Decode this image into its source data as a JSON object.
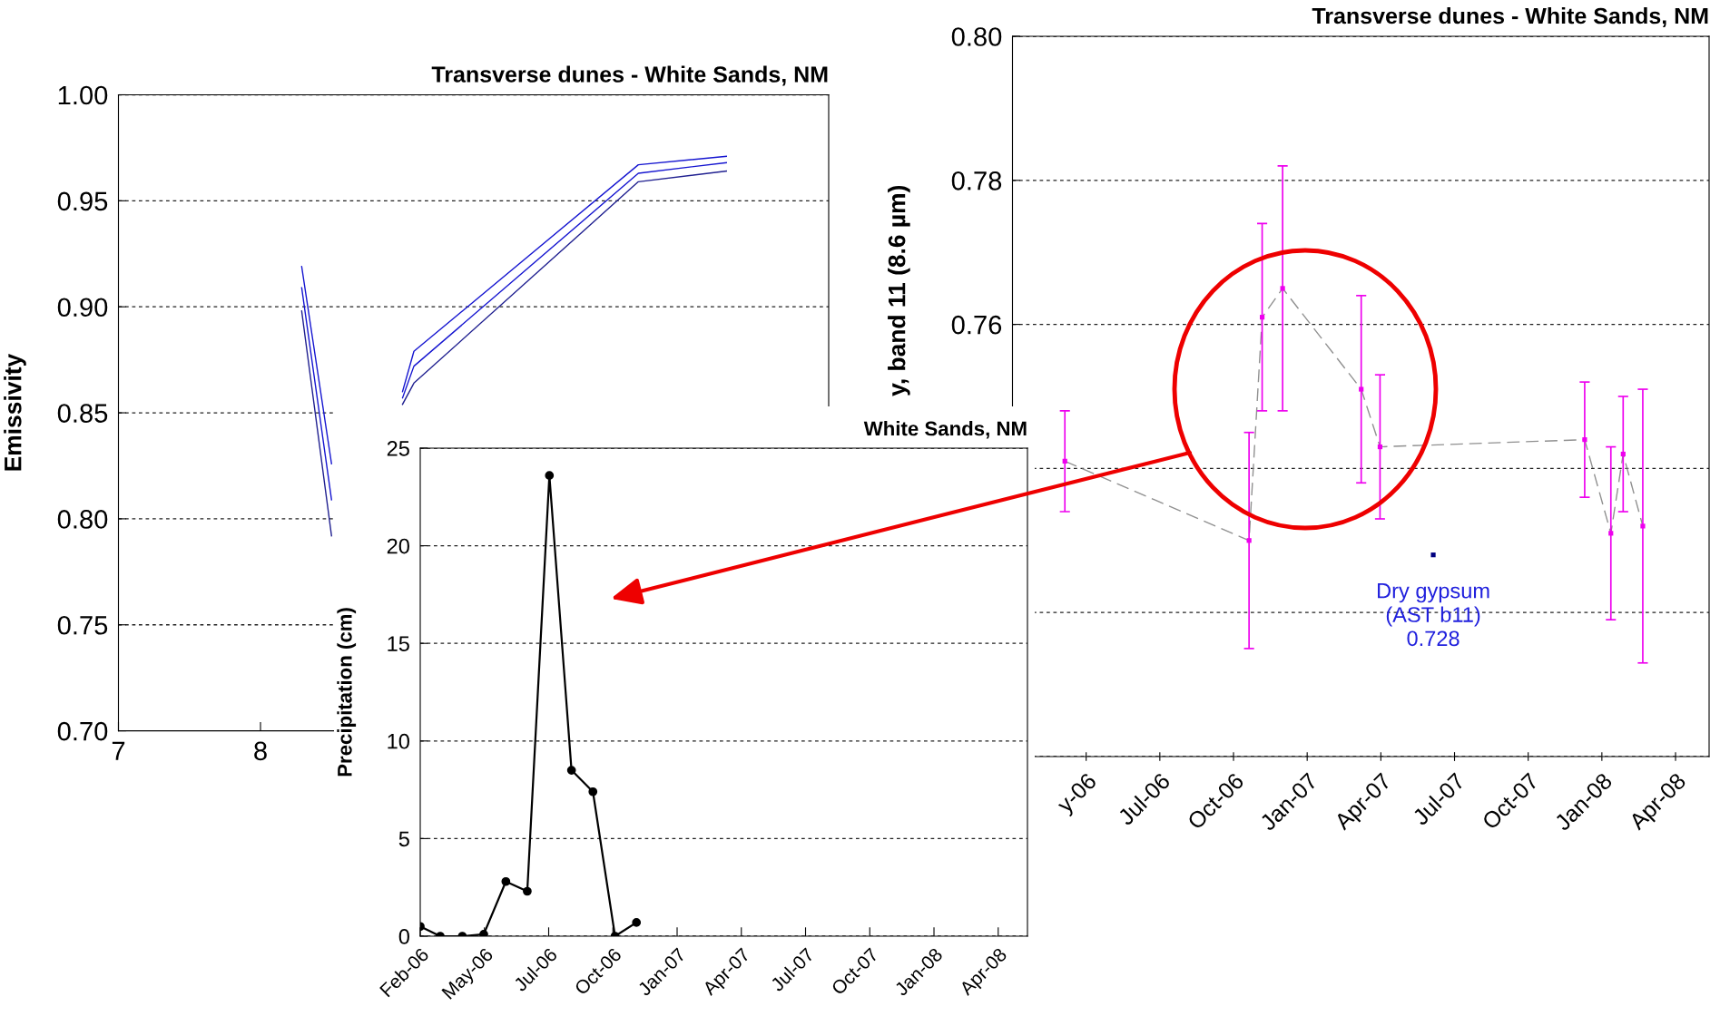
{
  "chart_data": [
    {
      "type": "line",
      "title": "Transverse dunes - White Sands, NM",
      "ylabel": "Emissivity",
      "xlim": [
        7,
        12
      ],
      "xticks": [
        7,
        8
      ],
      "ylim": [
        0.7,
        1.0
      ],
      "yticks": [
        {
          "value": 0.7,
          "label": "0.70"
        },
        {
          "value": 0.75,
          "label": "0.75"
        },
        {
          "value": 0.8,
          "label": "0.80"
        },
        {
          "value": 0.85,
          "label": "0.85"
        },
        {
          "value": 0.9,
          "label": "0.90"
        },
        {
          "value": 0.95,
          "label": "0.95"
        },
        {
          "value": 1.0,
          "label": "1.00"
        }
      ],
      "grid": "y",
      "series": [
        {
          "color": "#1515d0",
          "x": [
            8.29,
            8.5,
            8.75,
            9.0,
            9.08,
            10.66,
            11.28
          ],
          "values": [
            0.919,
            0.826,
            null,
            0.86,
            0.879,
            0.967,
            0.971
          ]
        },
        {
          "color": "#1515d0",
          "x": [
            8.29,
            8.5,
            8.75,
            9.0,
            9.08,
            10.66,
            11.28
          ],
          "values": [
            0.909,
            0.809,
            null,
            0.857,
            0.872,
            0.963,
            0.968
          ]
        },
        {
          "color": "#202090",
          "x": [
            8.29,
            8.5,
            8.75,
            9.0,
            9.08,
            10.66,
            11.28
          ],
          "values": [
            0.898,
            0.792,
            null,
            0.854,
            0.864,
            0.959,
            0.964
          ]
        }
      ]
    },
    {
      "type": "line",
      "title": "Transverse dunes - White Sands, NM",
      "ylabel": "y, band 11 (8.6 µm)",
      "xlim": [
        "2006-02-01",
        "2008-06-01"
      ],
      "xticks": [
        {
          "value": "2006-05-02",
          "label": "y-06"
        },
        {
          "value": "2006-07-31",
          "label": "Jul-06"
        },
        {
          "value": "2006-10-29",
          "label": "Oct-06"
        },
        {
          "value": "2007-01-27",
          "label": "Jan-07"
        },
        {
          "value": "2007-04-27",
          "label": "Apr-07"
        },
        {
          "value": "2007-07-26",
          "label": "Jul-07"
        },
        {
          "value": "2007-10-24",
          "label": "Oct-07"
        },
        {
          "value": "2008-01-22",
          "label": "Jan-08"
        },
        {
          "value": "2008-04-21",
          "label": "Apr-08"
        }
      ],
      "ylim": [
        0.7,
        0.8
      ],
      "yticks": [
        {
          "value": 0.7,
          "label": null
        },
        {
          "value": 0.72,
          "label": null
        },
        {
          "value": 0.74,
          "label": null
        },
        {
          "value": 0.76,
          "label": "0.76"
        },
        {
          "value": 0.78,
          "label": "0.78"
        },
        {
          "value": 0.8,
          "label": "0.80"
        }
      ],
      "grid": "y",
      "annotations": [
        {
          "text": "Dry gypsum\n(AST b11)\n0.728",
          "x": "2007-06-30",
          "y": 0.728
        }
      ],
      "series": [
        {
          "type": "line",
          "color": "#909090",
          "line_style": "dashed",
          "x": [
            "2006-04-06",
            "2006-11-17",
            "2006-12-03",
            "2006-12-28",
            "2007-04-03",
            "2007-04-26",
            "2008-01-01",
            "2008-02-02",
            "2008-02-17",
            "2008-03-12"
          ],
          "values": [
            0.741,
            0.73,
            0.761,
            0.765,
            0.751,
            0.743,
            0.744,
            0.731,
            0.742,
            0.732
          ]
        },
        {
          "type": "scatter",
          "color": "#ee00ee",
          "marker": "square",
          "x": [
            "2006-04-06",
            "2006-11-17",
            "2006-12-03",
            "2006-12-28",
            "2007-04-03",
            "2007-04-26",
            "2008-01-01",
            "2008-02-02",
            "2008-02-17",
            "2008-03-12"
          ],
          "values": [
            0.741,
            0.73,
            0.761,
            0.765,
            0.751,
            0.743,
            0.744,
            0.731,
            0.742,
            0.732
          ],
          "errors": [
            0.007,
            0.015,
            0.013,
            0.017,
            0.013,
            0.01,
            0.008,
            0.012,
            0.008,
            0.019
          ]
        },
        {
          "type": "scatter",
          "color": "#000080",
          "marker": "square",
          "x": [
            "2007-06-30"
          ],
          "values": [
            0.728
          ]
        }
      ]
    },
    {
      "type": "line",
      "title": "White Sands, NM",
      "ylabel": "Precipitation (cm)",
      "color": "#000000",
      "marker": "circle",
      "x": [
        "2006-02-01",
        "2006-03-01",
        "2006-04-01",
        "2006-05-01",
        "2006-06-01",
        "2006-07-01",
        "2006-08-01",
        "2006-09-01",
        "2006-10-01",
        "2006-11-01",
        "2006-12-01"
      ],
      "values": [
        0.5,
        0,
        0,
        0.1,
        2.8,
        2.3,
        23.6,
        8.5,
        7.4,
        0,
        0.7
      ],
      "xlim": [
        "2006-02-01",
        "2008-06-01"
      ],
      "xticks": [
        {
          "value": "2006-02-01",
          "label": "Feb-06"
        },
        {
          "value": "2006-05-02",
          "label": "May-06"
        },
        {
          "value": "2006-07-31",
          "label": "Jul-06"
        },
        {
          "value": "2006-10-29",
          "label": "Oct-06"
        },
        {
          "value": "2007-01-27",
          "label": "Jan-07"
        },
        {
          "value": "2007-04-27",
          "label": "Apr-07"
        },
        {
          "value": "2007-07-26",
          "label": "Jul-07"
        },
        {
          "value": "2007-10-24",
          "label": "Oct-07"
        },
        {
          "value": "2008-01-22",
          "label": "Jan-08"
        },
        {
          "value": "2008-04-21",
          "label": "Apr-08"
        }
      ],
      "ylim": [
        0,
        25
      ],
      "yticks": [
        0,
        5,
        10,
        15,
        20,
        25
      ],
      "grid": "y"
    }
  ]
}
